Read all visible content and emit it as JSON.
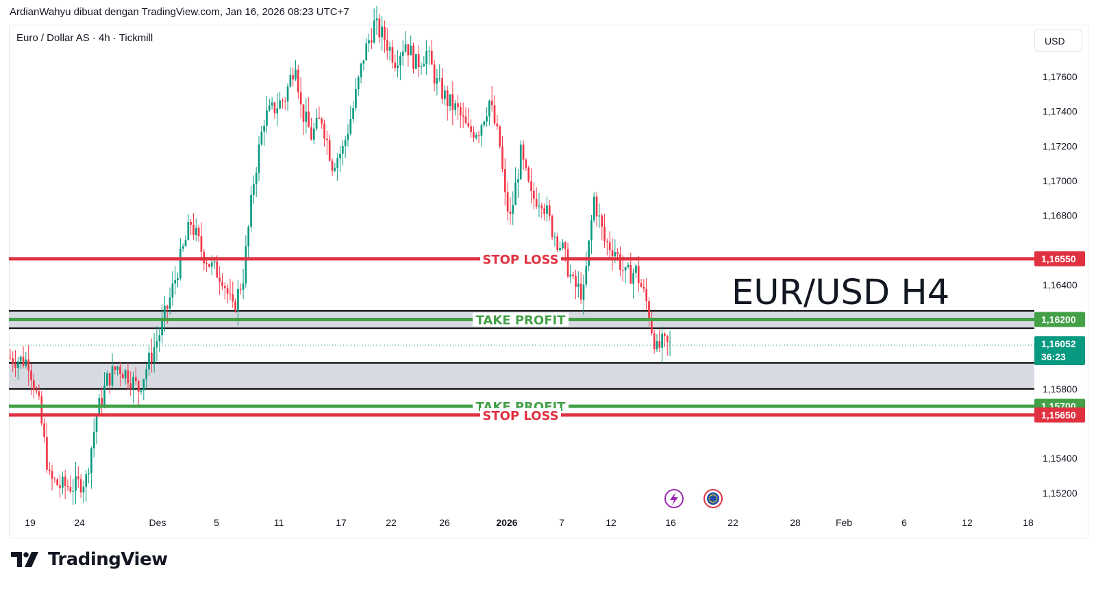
{
  "header": {
    "caption": "ArdianWahyu dibuat dengan TradingView.com, Jan 16, 2026 08:23 UTC+7"
  },
  "symbol": {
    "info": "Euro / Dollar AS · 4h · Tickmill",
    "currency": "USD"
  },
  "annotation": {
    "title": "EUR/USD H4"
  },
  "footer": {
    "brand": "TradingView"
  },
  "colors": {
    "up": "#089981",
    "down": "#f23645",
    "stop_loss": "#e03140",
    "take_profit": "#43a047",
    "zone_fill": "#d1d4dc",
    "last_price": "#089981"
  },
  "icons": [
    "lightning-event-icon",
    "eu-flag-event-icon"
  ],
  "chart_data": {
    "type": "candlestick",
    "title": "EUR/USD H4",
    "y_axis": {
      "range": [
        1.1514,
        1.179
      ],
      "ticks": [
        "1,15200",
        "1,15400",
        "1,15800",
        "1,16400",
        "1,16800",
        "1,17000",
        "1,17200",
        "1,17400",
        "1,17600"
      ],
      "tick_values": [
        1.152,
        1.154,
        1.158,
        1.164,
        1.168,
        1.17,
        1.172,
        1.174,
        1.176
      ]
    },
    "x_axis": {
      "ticks": [
        "19",
        "24",
        "Des",
        "5",
        "11",
        "17",
        "22",
        "26",
        "2026",
        "7",
        "12",
        "16",
        "22",
        "28",
        "Feb",
        "6",
        "12",
        "18"
      ],
      "bold_ticks": [
        "2026"
      ]
    },
    "levels": [
      {
        "name": "stop-loss-upper",
        "label": "STOP LOSS",
        "price": 1.1655,
        "price_label": "1,16550",
        "kind": "stop"
      },
      {
        "name": "take-profit-upper",
        "label": "TAKE PROFIT",
        "price": 1.162,
        "price_label": "1,16200",
        "kind": "target"
      },
      {
        "name": "take-profit-lower",
        "label": "TAKE PROFIT",
        "price": 1.157,
        "price_label": "1,15700",
        "kind": "target"
      },
      {
        "name": "stop-loss-lower",
        "label": "STOP LOSS",
        "price": 1.1565,
        "price_label": "1,15650",
        "kind": "stop"
      }
    ],
    "zones": [
      {
        "name": "upper-zone",
        "low": 1.1615,
        "high": 1.1625
      },
      {
        "name": "lower-zone",
        "low": 1.158,
        "high": 1.1595
      }
    ],
    "last_price": {
      "price": 1.16052,
      "label": "1,16052",
      "countdown": "36:23"
    },
    "trend_points": [
      [
        0,
        1.1598
      ],
      [
        8,
        1.1596
      ],
      [
        12,
        1.157
      ],
      [
        16,
        1.1528
      ],
      [
        20,
        1.1524
      ],
      [
        26,
        1.1524
      ],
      [
        30,
        1.1528
      ],
      [
        34,
        1.1565
      ],
      [
        38,
        1.1585
      ],
      [
        42,
        1.1593
      ],
      [
        46,
        1.1588
      ],
      [
        50,
        1.158
      ],
      [
        54,
        1.1596
      ],
      [
        58,
        1.1612
      ],
      [
        62,
        1.1632
      ],
      [
        66,
        1.1655
      ],
      [
        70,
        1.1676
      ],
      [
        74,
        1.166
      ],
      [
        78,
        1.165
      ],
      [
        82,
        1.1645
      ],
      [
        86,
        1.1625
      ],
      [
        90,
        1.1645
      ],
      [
        94,
        1.17
      ],
      [
        98,
        1.1736
      ],
      [
        102,
        1.1742
      ],
      [
        106,
        1.1748
      ],
      [
        110,
        1.177
      ],
      [
        112,
        1.1742
      ],
      [
        116,
        1.1726
      ],
      [
        120,
        1.1736
      ],
      [
        124,
        1.171
      ],
      [
        128,
        1.1718
      ],
      [
        132,
        1.1742
      ],
      [
        136,
        1.1772
      ],
      [
        140,
        1.179
      ],
      [
        144,
        1.1782
      ],
      [
        148,
        1.177
      ],
      [
        152,
        1.178
      ],
      [
        156,
        1.1767
      ],
      [
        160,
        1.1774
      ],
      [
        164,
        1.1756
      ],
      [
        168,
        1.1746
      ],
      [
        172,
        1.174
      ],
      [
        176,
        1.1728
      ],
      [
        180,
        1.173
      ],
      [
        184,
        1.1746
      ],
      [
        188,
        1.172
      ],
      [
        190,
        1.169
      ],
      [
        192,
        1.1678
      ],
      [
        196,
        1.1715
      ],
      [
        200,
        1.169
      ],
      [
        204,
        1.169
      ],
      [
        208,
        1.1672
      ],
      [
        212,
        1.166
      ],
      [
        216,
        1.164
      ],
      [
        220,
        1.1635
      ],
      [
        224,
        1.169
      ],
      [
        228,
        1.1665
      ],
      [
        232,
        1.166
      ],
      [
        236,
        1.1645
      ],
      [
        240,
        1.1648
      ],
      [
        244,
        1.163
      ],
      [
        246,
        1.1615
      ],
      [
        248,
        1.1602
      ],
      [
        250,
        1.1606
      ],
      [
        252,
        1.1605
      ]
    ],
    "total_bars": 253
  }
}
